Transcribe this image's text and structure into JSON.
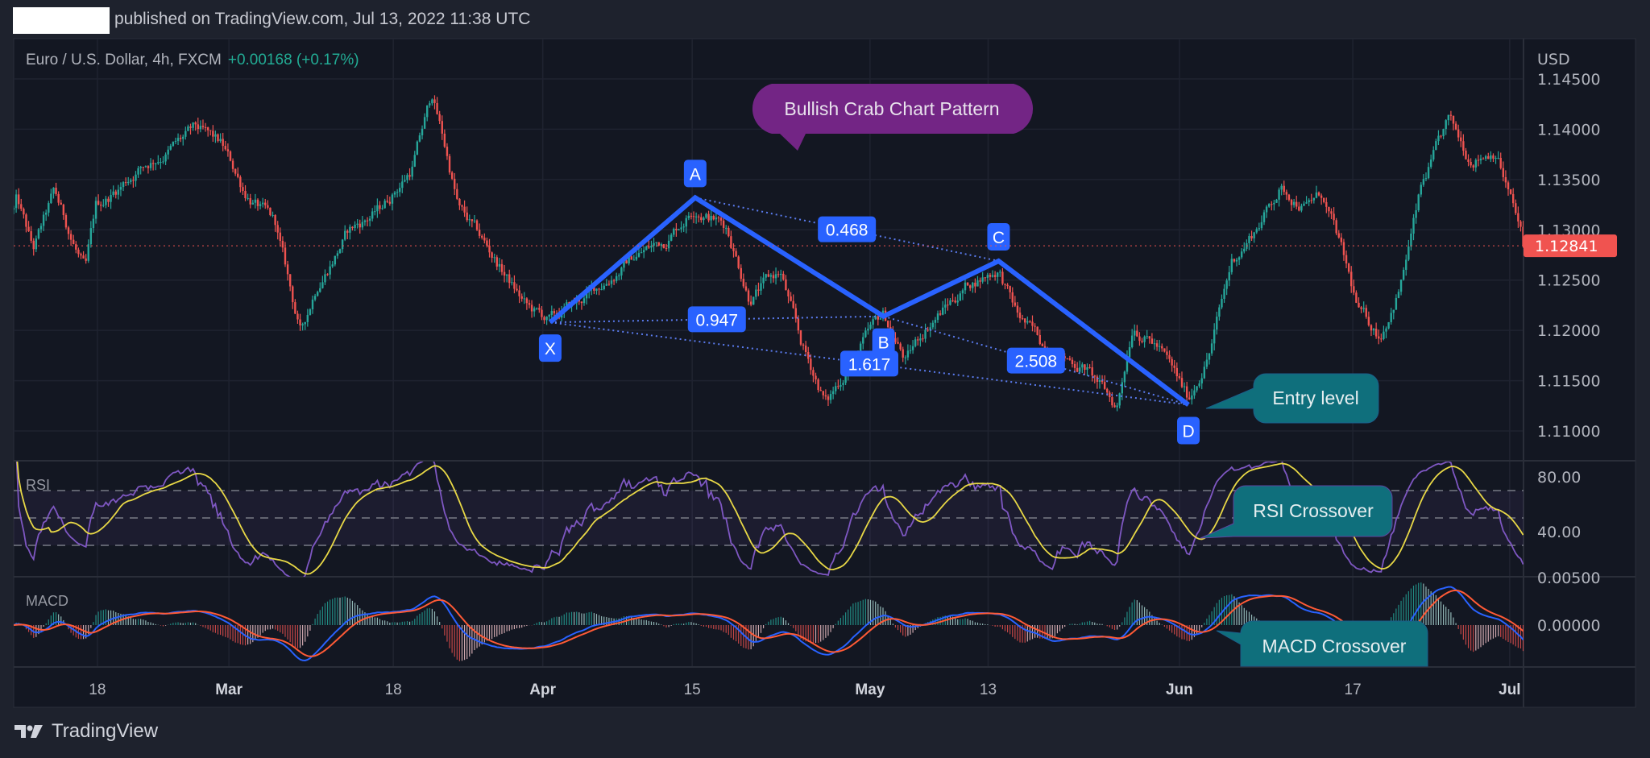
{
  "header": {
    "published_text": "published on TradingView.com, Jul 13, 2022 11:38 UTC"
  },
  "legend": {
    "symbol": "Euro / U.S. Dollar, 4h, FXCM",
    "change": "+0.00168 (+0.17%)"
  },
  "footer": {
    "brand": "TradingView",
    "logo_icon": "tradingview-logo-icon"
  },
  "colors": {
    "up": "#26a69a",
    "down": "#ef5350",
    "pattern": "#2962ff",
    "rsi": "#7e57c2",
    "rsi_ma": "#e8d846",
    "macd": "#2962ff",
    "signal": "#ff5a36",
    "price_tag": "#f05350",
    "callout_purple": "#732585",
    "callout_teal": "#0f6f7c"
  },
  "chart_data": {
    "type": "candlestick",
    "title": "Euro / U.S. Dollar, 4h, FXCM",
    "currency_label": "USD",
    "x_unit": "trading days since start of visible range (4h bars)",
    "price_axis": {
      "labels": [
        "1.14500",
        "1.14000",
        "1.13500",
        "1.13000",
        "1.12500",
        "1.12000",
        "1.11500",
        "1.11000"
      ],
      "values": [
        1.145,
        1.14,
        1.135,
        1.13,
        1.125,
        1.12,
        1.115,
        1.11
      ],
      "range": [
        1.1055,
        1.1505
      ]
    },
    "last_price": {
      "value": 1.12841,
      "label": "1.12841"
    },
    "time_axis": [
      {
        "label": "18",
        "td": 5.6,
        "major": false
      },
      {
        "label": "Mar",
        "td": 14.4,
        "major": true
      },
      {
        "label": "18",
        "td": 25.4,
        "major": false
      },
      {
        "label": "Apr",
        "td": 35.4,
        "major": true
      },
      {
        "label": "15",
        "td": 45.4,
        "major": false
      },
      {
        "label": "May",
        "td": 57.3,
        "major": true
      },
      {
        "label": "13",
        "td": 65.2,
        "major": false
      },
      {
        "label": "Jun",
        "td": 78.0,
        "major": true
      },
      {
        "label": "17",
        "td": 89.6,
        "major": false
      },
      {
        "label": "Jul",
        "td": 100.1,
        "major": true
      }
    ],
    "price_path": [
      [
        0,
        1.132
      ],
      [
        0.2,
        1.133
      ],
      [
        1.3,
        1.1278
      ],
      [
        2.7,
        1.1335
      ],
      [
        4.8,
        1.1257
      ],
      [
        5.5,
        1.132
      ],
      [
        8.3,
        1.1361
      ],
      [
        12.2,
        1.1398
      ],
      [
        13.9,
        1.1382
      ],
      [
        15.4,
        1.134
      ],
      [
        17.5,
        1.1304
      ],
      [
        19.2,
        1.1195
      ],
      [
        20.3,
        1.1247
      ],
      [
        22.4,
        1.1299
      ],
      [
        24.5,
        1.132
      ],
      [
        26.6,
        1.1361
      ],
      [
        28.0,
        1.1434
      ],
      [
        28.7,
        1.1393
      ],
      [
        29.8,
        1.132
      ],
      [
        32.3,
        1.1268
      ],
      [
        34.4,
        1.1221
      ],
      [
        35.9,
        1.1208
      ],
      [
        38.6,
        1.1236
      ],
      [
        41.4,
        1.1273
      ],
      [
        43.5,
        1.1289
      ],
      [
        45.6,
        1.1325
      ],
      [
        47.7,
        1.1304
      ],
      [
        49.2,
        1.1236
      ],
      [
        51.3,
        1.1257
      ],
      [
        52.7,
        1.1184
      ],
      [
        54.4,
        1.1127
      ],
      [
        56.2,
        1.1174
      ],
      [
        58.2,
        1.1214
      ],
      [
        59.7,
        1.1169
      ],
      [
        61.1,
        1.1205
      ],
      [
        63.9,
        1.1247
      ],
      [
        65.9,
        1.1262
      ],
      [
        67.1,
        1.1216
      ],
      [
        68.9,
        1.1184
      ],
      [
        71.7,
        1.1164
      ],
      [
        73.8,
        1.1122
      ],
      [
        74.9,
        1.121
      ],
      [
        76.6,
        1.1184
      ],
      [
        78.6,
        1.113
      ],
      [
        80.1,
        1.1184
      ],
      [
        81.5,
        1.1268
      ],
      [
        83.0,
        1.1299
      ],
      [
        84.7,
        1.1341
      ],
      [
        86.5,
        1.1325
      ],
      [
        87.5,
        1.1335
      ],
      [
        88.6,
        1.1289
      ],
      [
        90.0,
        1.1216
      ],
      [
        91.4,
        1.1195
      ],
      [
        92.8,
        1.1247
      ],
      [
        94.2,
        1.1341
      ],
      [
        96.0,
        1.1405
      ],
      [
        97.4,
        1.1372
      ],
      [
        99.2,
        1.1382
      ],
      [
        100.6,
        1.1309
      ],
      [
        101.1,
        1.12841
      ]
    ],
    "pattern": {
      "name": "Bullish Crab",
      "points": [
        {
          "label": "X",
          "td": 35.9,
          "price": 1.1208,
          "pos": "below"
        },
        {
          "label": "A",
          "td": 45.6,
          "price": 1.1332,
          "pos": "above"
        },
        {
          "label": "B",
          "td": 58.2,
          "price": 1.1214,
          "pos": "below"
        },
        {
          "label": "C",
          "td": 65.9,
          "price": 1.1269,
          "pos": "above"
        },
        {
          "label": "D",
          "td": 78.6,
          "price": 1.1126,
          "pos": "below"
        }
      ],
      "ratios": [
        {
          "value": "0.468",
          "from": "A",
          "to": "C"
        },
        {
          "value": "0.947",
          "from": "X",
          "to": "B"
        },
        {
          "value": "1.617",
          "from": "X",
          "to": "D"
        },
        {
          "value": "2.508",
          "from": "B",
          "to": "D"
        }
      ]
    },
    "annotations": {
      "pattern_title": "Bullish Crab Chart Pattern",
      "entry": "Entry level",
      "rsi_cross": "RSI Crossover",
      "macd_cross": "MACD Crossover"
    },
    "rsi": {
      "label": "RSI",
      "axis_labels": [
        "80.00",
        "40.00"
      ],
      "axis_values": [
        80,
        40
      ],
      "levels": [
        70,
        50,
        30
      ],
      "period": 14,
      "ma_period": 14
    },
    "macd": {
      "label": "MACD",
      "axis_labels": [
        "0.00500",
        "0.00000"
      ],
      "axis_values": [
        0.005,
        0
      ],
      "fast": 12,
      "slow": 26,
      "signal": 9
    }
  }
}
